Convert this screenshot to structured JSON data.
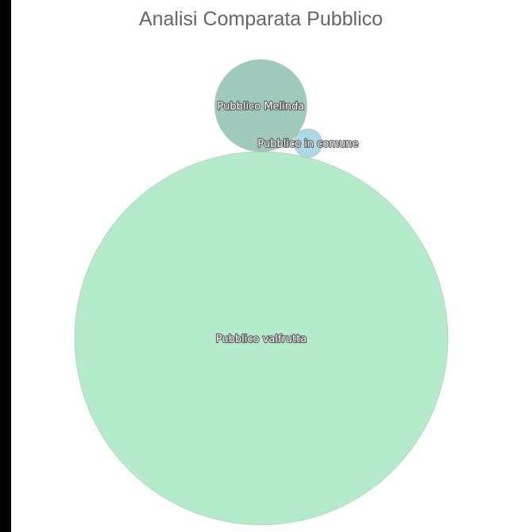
{
  "chart_data": {
    "type": "bubble",
    "title": "Analisi Comparata Pubblico",
    "series": [
      {
        "name": "Pubblico valfrutta",
        "value": 16.4,
        "color": "#b4ebcb"
      },
      {
        "name": "Pubblico Melinda",
        "value": 1.0,
        "color": "#a0c9bd"
      },
      {
        "name": "Pubblico in comune",
        "value": 0.095,
        "color": "#abd9e6"
      }
    ],
    "legend": false
  }
}
